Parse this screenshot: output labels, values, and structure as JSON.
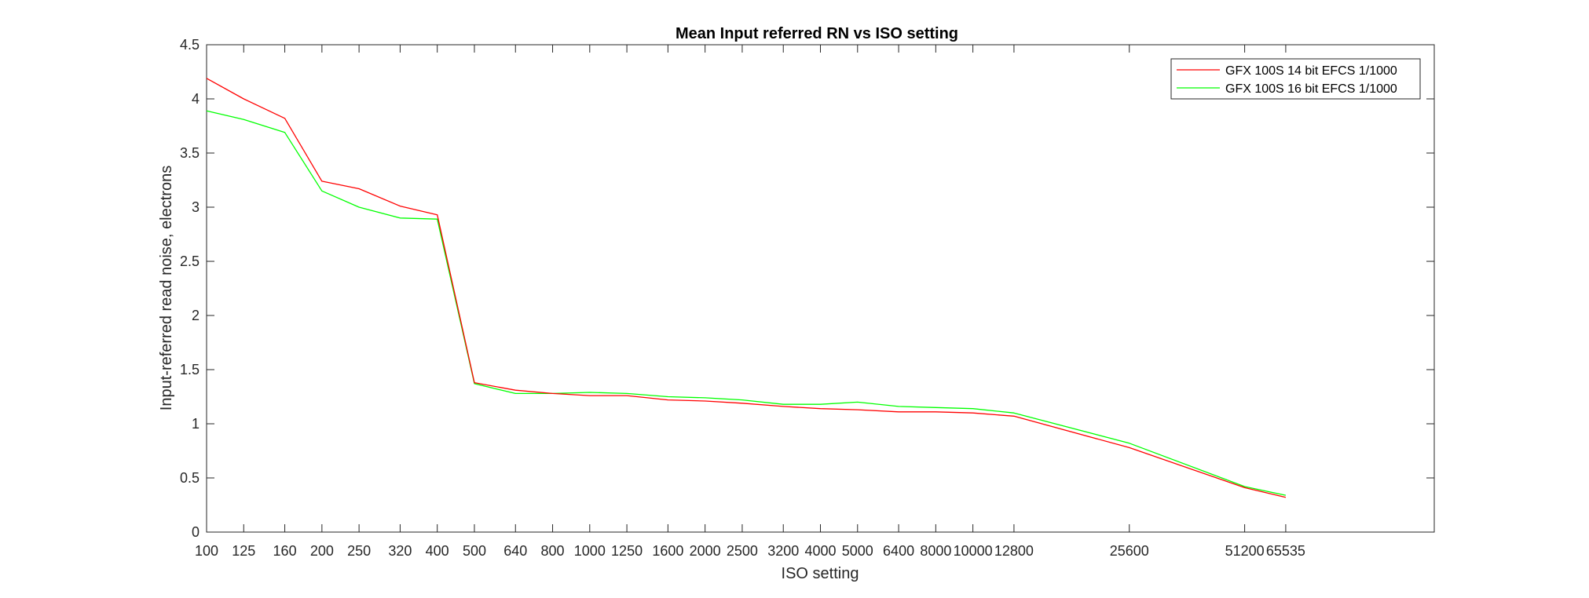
{
  "chart_data": {
    "type": "line",
    "title": "Mean Input referred RN vs ISO setting",
    "xlabel": "ISO setting",
    "ylabel": "Input-referred read noise, electrons",
    "x_scale": "log",
    "xlim": [
      100,
      160000
    ],
    "ylim": [
      0,
      4.5
    ],
    "yticks": [
      "0",
      "0.5",
      "1",
      "1.5",
      "2",
      "2.5",
      "3",
      "3.5",
      "4",
      "4.5"
    ],
    "x_tick_labels": [
      "100",
      "125",
      "160",
      "200",
      "250",
      "320",
      "400",
      "500",
      "640",
      "800",
      "1000",
      "1250",
      "1600",
      "2000",
      "2500",
      "3200",
      "4000",
      "5000",
      "6400",
      "8000",
      "10000",
      "12800",
      "25600",
      "51200",
      "65535"
    ],
    "grid": false,
    "legend_position": "top-right",
    "x": [
      100,
      125,
      160,
      200,
      250,
      320,
      400,
      500,
      640,
      800,
      1000,
      1250,
      1600,
      2000,
      2500,
      3200,
      4000,
      5000,
      6400,
      8000,
      10000,
      12800,
      25600,
      51200,
      65535
    ],
    "series": [
      {
        "name": "GFX 100S 14 bit EFCS 1/1000",
        "color": "#ff0000",
        "values": [
          4.19,
          4.0,
          3.82,
          3.24,
          3.17,
          3.01,
          2.93,
          1.38,
          1.31,
          1.28,
          1.26,
          1.26,
          1.22,
          1.21,
          1.19,
          1.16,
          1.14,
          1.13,
          1.11,
          1.11,
          1.1,
          1.07,
          0.78,
          0.41,
          0.32
        ]
      },
      {
        "name": "GFX 100S 16 bit EFCS 1/1000",
        "color": "#00ff00",
        "values": [
          3.89,
          3.81,
          3.69,
          3.15,
          3.0,
          2.9,
          2.89,
          1.37,
          1.28,
          1.28,
          1.29,
          1.28,
          1.25,
          1.24,
          1.22,
          1.18,
          1.18,
          1.2,
          1.16,
          1.15,
          1.14,
          1.1,
          0.82,
          0.42,
          0.34
        ]
      }
    ]
  }
}
